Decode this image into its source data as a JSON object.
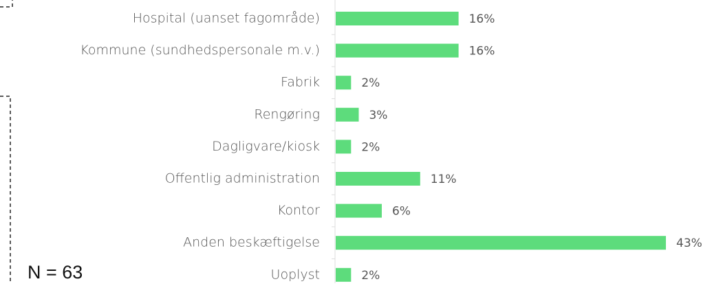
{
  "chart_data": {
    "type": "bar",
    "orientation": "horizontal",
    "categories": [
      "Hospital (uanset fagområde)",
      "Kommune (sundhedspersonale m.v.)",
      "Fabrik",
      "Rengøring",
      "Dagligvare/kiosk",
      "Offentlig administration",
      "Kontor",
      "Anden beskæftigelse",
      "Uoplyst"
    ],
    "values": [
      16,
      16,
      2,
      3,
      2,
      11,
      6,
      43,
      2
    ],
    "value_labels": [
      "16%",
      "16%",
      "2%",
      "3%",
      "2%",
      "11%",
      "6%",
      "43%",
      "2%"
    ],
    "color": "#5ddc7c",
    "annotation": "N = 63"
  }
}
